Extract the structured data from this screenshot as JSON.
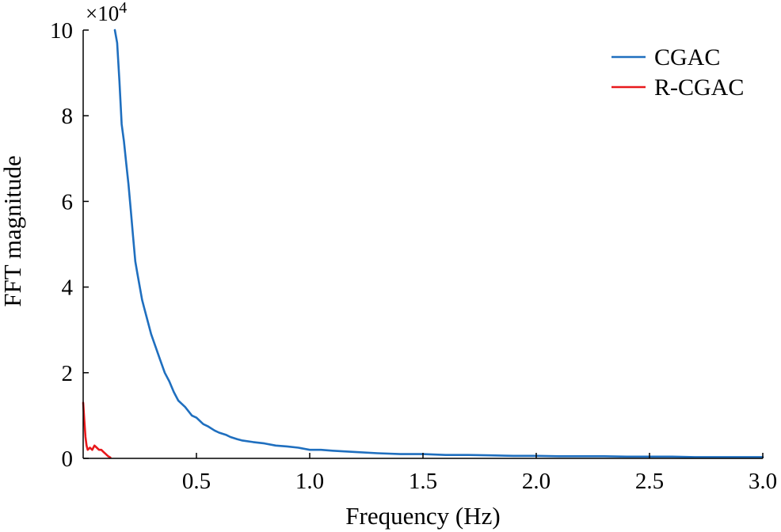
{
  "chart_data": {
    "type": "line",
    "title": "",
    "xlabel": "Frequency (Hz)",
    "ylabel": "FFT magnitude",
    "y_multiplier_label": "×10",
    "y_multiplier_exponent": "4",
    "xlim": [
      0,
      3.0
    ],
    "ylim": [
      0,
      10
    ],
    "x_ticks": [
      0.5,
      1.0,
      1.5,
      2.0,
      2.5,
      3.0
    ],
    "x_tick_labels": [
      "0.5",
      "1.0",
      "1.5",
      "2.0",
      "2.5",
      "3.0"
    ],
    "y_ticks": [
      0,
      2,
      4,
      6,
      8,
      10
    ],
    "y_tick_labels": [
      "0",
      "2",
      "4",
      "6",
      "8",
      "10"
    ],
    "grid": false,
    "legend_position": "top-right",
    "series": [
      {
        "name": "CGAC",
        "color": "#1f6fbf",
        "x": [
          0.14,
          0.15,
          0.16,
          0.17,
          0.18,
          0.19,
          0.2,
          0.21,
          0.22,
          0.23,
          0.24,
          0.25,
          0.26,
          0.27,
          0.28,
          0.3,
          0.32,
          0.34,
          0.36,
          0.38,
          0.4,
          0.42,
          0.45,
          0.48,
          0.5,
          0.53,
          0.55,
          0.58,
          0.6,
          0.63,
          0.65,
          0.68,
          0.7,
          0.75,
          0.8,
          0.85,
          0.9,
          0.95,
          1.0,
          1.05,
          1.1,
          1.2,
          1.3,
          1.4,
          1.5,
          1.6,
          1.7,
          1.8,
          1.9,
          2.0,
          2.1,
          2.2,
          2.3,
          2.4,
          2.5,
          2.6,
          2.7,
          2.8,
          2.9,
          3.0
        ],
        "y": [
          10.0,
          9.7,
          8.8,
          7.8,
          7.4,
          6.9,
          6.4,
          5.8,
          5.2,
          4.6,
          4.3,
          4.0,
          3.7,
          3.5,
          3.3,
          2.9,
          2.6,
          2.3,
          2.0,
          1.8,
          1.55,
          1.35,
          1.2,
          1.0,
          0.95,
          0.8,
          0.75,
          0.65,
          0.6,
          0.55,
          0.5,
          0.45,
          0.42,
          0.38,
          0.35,
          0.3,
          0.28,
          0.25,
          0.2,
          0.2,
          0.18,
          0.15,
          0.12,
          0.1,
          0.1,
          0.08,
          0.08,
          0.07,
          0.06,
          0.06,
          0.05,
          0.05,
          0.05,
          0.04,
          0.04,
          0.04,
          0.03,
          0.03,
          0.03,
          0.03
        ]
      },
      {
        "name": "R-CGAC",
        "color": "#e8191c",
        "x": [
          0.0,
          0.005,
          0.01,
          0.015,
          0.02,
          0.03,
          0.04,
          0.05,
          0.06,
          0.07,
          0.08,
          0.09,
          0.1,
          0.11,
          0.12
        ],
        "y": [
          1.3,
          0.9,
          0.5,
          0.3,
          0.2,
          0.25,
          0.2,
          0.3,
          0.25,
          0.2,
          0.2,
          0.15,
          0.1,
          0.05,
          0.02
        ]
      }
    ]
  }
}
